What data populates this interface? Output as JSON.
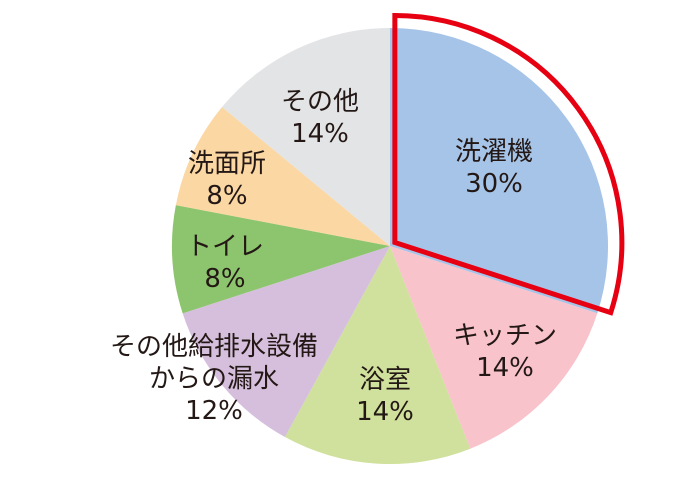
{
  "chart_data": {
    "type": "pie",
    "title": "",
    "start_angle_deg": 0,
    "direction": "clockwise",
    "highlight": "洗濯機",
    "colors": {
      "highlight_border": "#e60012"
    },
    "slices": [
      {
        "label": "洗濯機",
        "value": 30,
        "display": "30%",
        "color": "#a6c4e7"
      },
      {
        "label": "キッチン",
        "value": 14,
        "display": "14%",
        "color": "#f8c3cb"
      },
      {
        "label": "浴室",
        "value": 14,
        "display": "14%",
        "color": "#cfe19c"
      },
      {
        "label": "その他給排水設備からの漏水",
        "label_lines": [
          "その他給排水設備",
          "からの漏水"
        ],
        "value": 12,
        "display": "12%",
        "color": "#d6bfdd"
      },
      {
        "label": "トイレ",
        "value": 8,
        "display": "8%",
        "color": "#8cc56e"
      },
      {
        "label": "洗面所",
        "value": 8,
        "display": "8%",
        "color": "#fbd7a3"
      },
      {
        "label": "その他",
        "value": 14,
        "display": "14%",
        "color": "#e3e4e6"
      }
    ]
  }
}
